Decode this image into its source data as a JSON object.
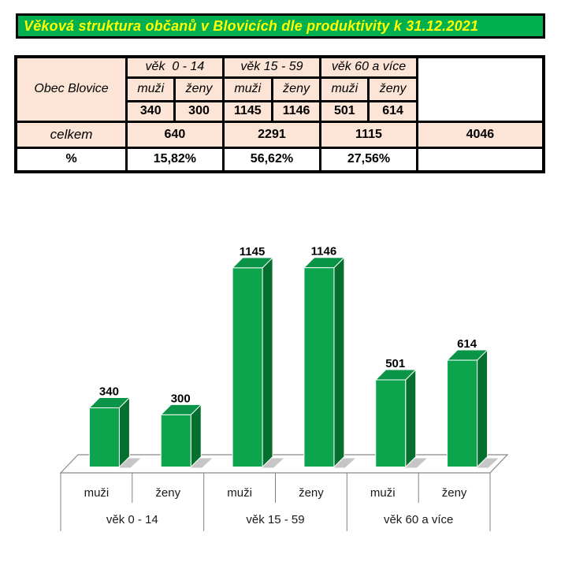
{
  "title": "Věková struktura občanů v Blovicích dle produktivity k 31.12.2021",
  "colors": {
    "title_background": "#00B050",
    "title_text": "#FFFF00",
    "table_fill": "#FCE4D6",
    "bar_front": "#0CA54E",
    "bar_top": "#0A9447",
    "bar_side": "#056F2F",
    "bar_shadow": "#C6C6C6",
    "floor_outline": "#898989"
  },
  "table": {
    "corner_label": "Obec Blovice",
    "age_groups": [
      "věk  0 - 14",
      "věk 15 - 59",
      "věk 60 a více"
    ],
    "gender_labels": [
      "muži",
      "ženy",
      "muži",
      "ženy",
      "muži",
      "ženy"
    ],
    "values": [
      "340",
      "300",
      "1145",
      "1146",
      "501",
      "614"
    ],
    "total_row": {
      "label": "celkem",
      "values": [
        "640",
        "2291",
        "1115"
      ],
      "grand_total": "4046"
    },
    "percent_row": {
      "label": "%",
      "values": [
        "15,82%",
        "56,62%",
        "27,56%"
      ]
    }
  },
  "chart_data": {
    "type": "bar",
    "style": "3d-column",
    "title": "",
    "groups": [
      "věk  0 - 14",
      "věk 15 - 59",
      "věk 60 a více"
    ],
    "categories": [
      "muži",
      "ženy",
      "muži",
      "ženy",
      "muži",
      "ženy"
    ],
    "values": [
      340,
      300,
      1145,
      1146,
      501,
      614
    ],
    "data_labels_visible": true,
    "value_axis_visible": false,
    "legend": "none",
    "ylim": [
      0,
      1200
    ]
  }
}
